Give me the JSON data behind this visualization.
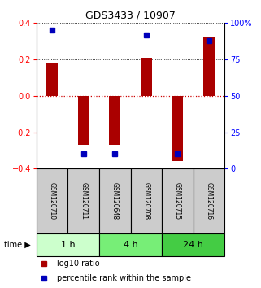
{
  "title": "GDS3433 / 10907",
  "samples": [
    "GSM120710",
    "GSM120711",
    "GSM120648",
    "GSM120708",
    "GSM120715",
    "GSM120716"
  ],
  "log10_ratio": [
    0.18,
    -0.27,
    -0.27,
    0.21,
    -0.36,
    0.32
  ],
  "percentile_rank": [
    95,
    10,
    10,
    92,
    10,
    88
  ],
  "ylim_left": [
    -0.4,
    0.4
  ],
  "ylim_right": [
    0,
    100
  ],
  "yticks_left": [
    -0.4,
    -0.2,
    0.0,
    0.2,
    0.4
  ],
  "yticks_right": [
    0,
    25,
    50,
    75,
    100
  ],
  "ytick_labels_right": [
    "0",
    "25",
    "50",
    "75",
    "100%"
  ],
  "time_groups": [
    {
      "label": "1 h",
      "cols": [
        0,
        1
      ],
      "color": "#ccffcc"
    },
    {
      "label": "4 h",
      "cols": [
        2,
        3
      ],
      "color": "#77ee77"
    },
    {
      "label": "24 h",
      "cols": [
        4,
        5
      ],
      "color": "#44cc44"
    }
  ],
  "bar_color": "#aa0000",
  "dot_color": "#0000bb",
  "zero_line_color": "#cc0000",
  "grid_color": "#000000",
  "sample_box_color": "#cccccc",
  "background_color": "#ffffff",
  "bar_width": 0.35
}
